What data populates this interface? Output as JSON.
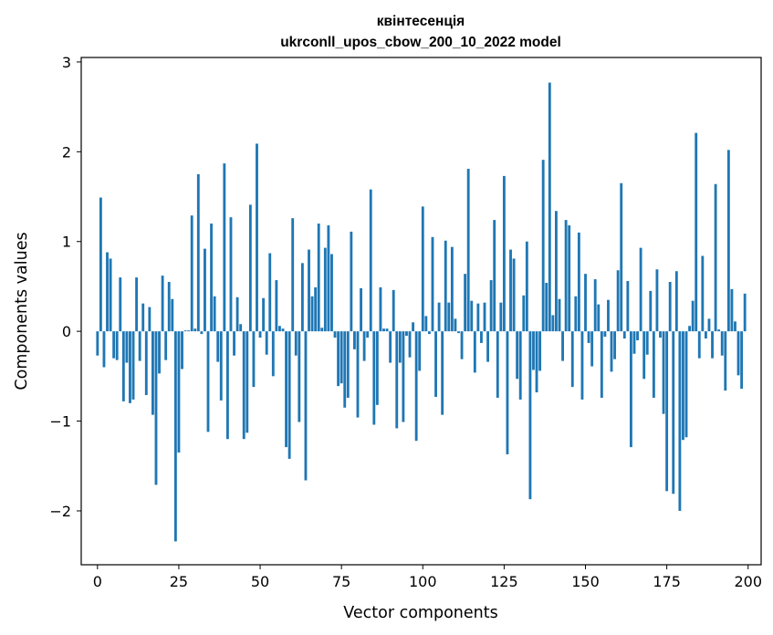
{
  "chart_data": {
    "type": "bar",
    "title": "квінтесенція",
    "subtitle": "ukrconll_upos_cbow_200_10_2022 model",
    "xlabel": "Vector components",
    "ylabel": "Components values",
    "xlim": [
      -5,
      204
    ],
    "ylim": [
      -2.6,
      3.05
    ],
    "xticks": [
      0,
      25,
      50,
      75,
      100,
      125,
      150,
      175,
      200
    ],
    "yticks": [
      -2,
      -1,
      0,
      1,
      2,
      3
    ],
    "yticklabels": [
      "−2",
      "−1",
      "0",
      "1",
      "2",
      "3"
    ],
    "grid": false,
    "color": "#1f77b4",
    "x_start": 0,
    "values": [
      -0.27,
      1.49,
      -0.4,
      0.88,
      0.81,
      -0.3,
      -0.32,
      0.6,
      -0.78,
      -0.35,
      -0.8,
      -0.76,
      0.6,
      -0.33,
      0.31,
      -0.71,
      0.27,
      -0.93,
      -1.71,
      -0.47,
      0.62,
      -0.32,
      0.55,
      0.36,
      -2.34,
      -1.35,
      -0.42,
      0.01,
      0.01,
      1.29,
      0.03,
      1.75,
      -0.03,
      0.92,
      -1.12,
      1.2,
      0.39,
      -0.34,
      -0.77,
      1.87,
      -1.2,
      1.27,
      -0.27,
      0.38,
      0.08,
      -1.2,
      -1.13,
      1.41,
      -0.62,
      2.09,
      -0.07,
      0.37,
      -0.26,
      0.87,
      -0.5,
      0.57,
      0.06,
      0.03,
      -1.29,
      -1.42,
      1.26,
      -0.27,
      -1.01,
      0.76,
      -1.66,
      0.91,
      0.39,
      0.49,
      1.2,
      0.04,
      0.93,
      1.18,
      0.86,
      -0.07,
      -0.61,
      -0.58,
      -0.85,
      -0.74,
      1.11,
      -0.2,
      -0.96,
      0.48,
      -0.33,
      -0.07,
      1.58,
      -1.04,
      -0.82,
      0.49,
      0.03,
      0.03,
      -0.35,
      0.46,
      -1.08,
      -0.35,
      -1.01,
      -0.05,
      -0.29,
      0.1,
      -1.22,
      -0.44,
      1.39,
      0.17,
      -0.03,
      1.05,
      -0.73,
      0.32,
      -0.93,
      1.01,
      0.32,
      0.94,
      0.14,
      -0.02,
      -0.31,
      0.64,
      1.81,
      0.34,
      -0.46,
      0.31,
      -0.13,
      0.32,
      -0.34,
      0.57,
      1.24,
      -0.74,
      0.32,
      1.73,
      -1.37,
      0.91,
      0.81,
      -0.53,
      -0.76,
      0.4,
      1.0,
      -1.87,
      -0.43,
      -0.68,
      -0.44,
      1.91,
      0.54,
      2.77,
      0.18,
      1.34,
      0.36,
      -0.33,
      1.24,
      1.18,
      -0.62,
      0.39,
      1.1,
      -0.76,
      0.64,
      -0.13,
      -0.39,
      0.58,
      0.3,
      -0.74,
      -0.06,
      0.35,
      -0.45,
      -0.31,
      0.68,
      1.65,
      -0.08,
      0.56,
      -1.29,
      -0.25,
      -0.1,
      0.93,
      -0.53,
      -0.26,
      0.45,
      -0.74,
      0.69,
      -0.07,
      -0.92,
      -1.78,
      0.55,
      -1.81,
      0.67,
      -2.0,
      -1.21,
      -1.18,
      0.06,
      0.34,
      2.21,
      -0.3,
      0.84,
      -0.08,
      0.14,
      -0.3,
      1.64,
      0.02,
      -0.27,
      -0.66,
      2.02,
      0.47,
      0.11,
      -0.49,
      -0.64,
      0.42
    ]
  }
}
